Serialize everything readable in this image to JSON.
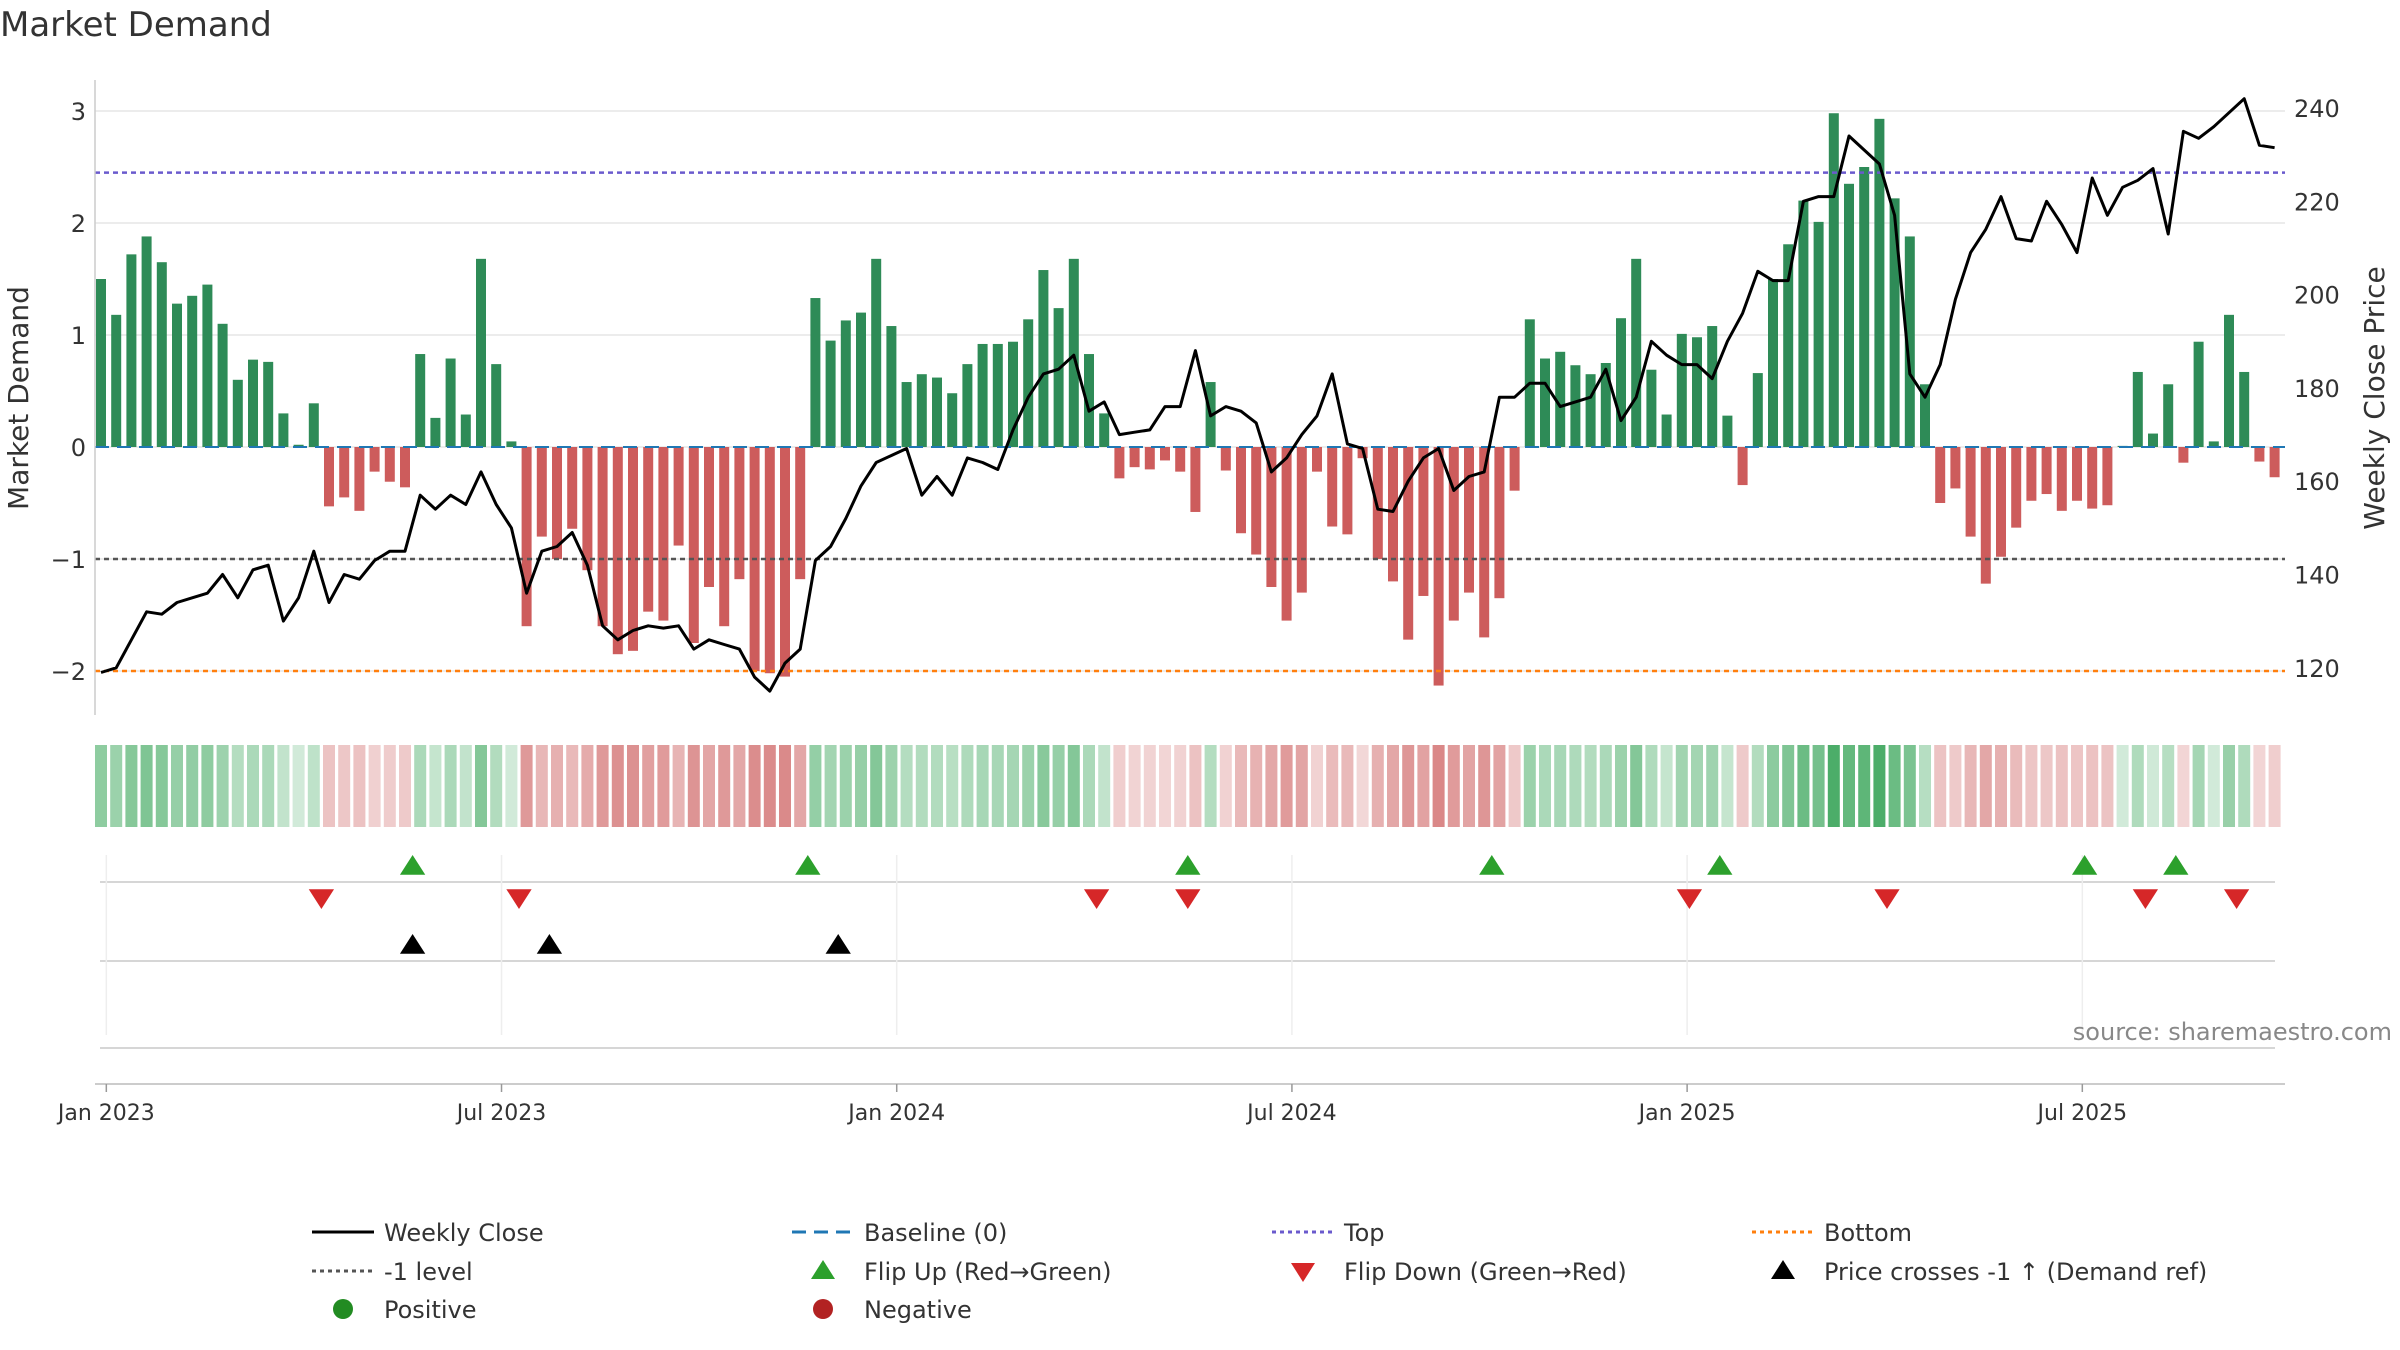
{
  "chart_data": {
    "type": "bar",
    "title": "Market Demand",
    "ylabel_left": "Market Demand",
    "ylabel_right": "Weekly Close Price",
    "ylim_left": [
      -2.4,
      3.3
    ],
    "ylim_right": [
      115,
      245
    ],
    "yticks_left": [
      {
        "v": 3,
        "label": "3"
      },
      {
        "v": 2,
        "label": "2"
      },
      {
        "v": 1,
        "label": "1"
      },
      {
        "v": 0,
        "label": "0"
      },
      {
        "v": -1,
        "label": "−1"
      },
      {
        "v": -2,
        "label": "−2"
      }
    ],
    "yticks_right": [
      240,
      220,
      200,
      180,
      160,
      140,
      120
    ],
    "x_start_label_week": 0,
    "xtick_positions": [
      0.35,
      26.35,
      52.35,
      78.35,
      104.35,
      130.35
    ],
    "xtick_labels": [
      "Jan 2023",
      "Jul 2023",
      "Jan 2024",
      "Jul 2024",
      "Jan 2025",
      "Jul 2025"
    ],
    "reference_lines": {
      "top": 2.45,
      "minus_one": -1,
      "bottom": -2
    },
    "demand": [
      1.5,
      1.18,
      1.72,
      1.88,
      1.65,
      1.28,
      1.35,
      1.45,
      1.1,
      0.6,
      0.78,
      0.76,
      0.3,
      0.02,
      0.39,
      -0.53,
      -0.45,
      -0.57,
      -0.22,
      -0.31,
      -0.36,
      0.83,
      0.26,
      0.79,
      0.29,
      1.68,
      0.74,
      0.05,
      -1.6,
      -0.8,
      -1.0,
      -0.73,
      -1.1,
      -1.6,
      -1.85,
      -1.82,
      -1.47,
      -1.55,
      -0.88,
      -1.75,
      -1.25,
      -1.6,
      -1.18,
      -2.0,
      -2.02,
      -2.05,
      -1.18,
      1.33,
      0.95,
      1.13,
      1.2,
      1.68,
      1.08,
      0.58,
      0.65,
      0.62,
      0.48,
      0.74,
      0.92,
      0.92,
      0.94,
      1.14,
      1.58,
      1.24,
      1.68,
      0.83,
      0.3,
      -0.28,
      -0.18,
      -0.2,
      -0.12,
      -0.22,
      -0.58,
      0.58,
      -0.21,
      -0.77,
      -0.96,
      -1.25,
      -1.55,
      -1.3,
      -0.22,
      -0.71,
      -0.78,
      -0.1,
      -1.0,
      -1.2,
      -1.72,
      -1.33,
      -2.13,
      -1.55,
      -1.3,
      -1.7,
      -1.35,
      -0.39,
      1.14,
      0.79,
      0.85,
      0.73,
      0.65,
      0.75,
      1.15,
      1.68,
      0.69,
      0.29,
      1.01,
      0.98,
      1.08,
      0.28,
      -0.34,
      0.66,
      1.5,
      1.81,
      2.2,
      2.01,
      2.98,
      2.35,
      2.5,
      2.93,
      2.22,
      1.88,
      0.56,
      -0.5,
      -0.37,
      -0.8,
      -1.22,
      -0.98,
      -0.72,
      -0.48,
      -0.42,
      -0.57,
      -0.48,
      -0.55,
      -0.52,
      0.01,
      0.67,
      0.12,
      0.56,
      -0.14,
      0.94,
      0.05,
      1.18,
      0.67,
      -0.13,
      -0.27
    ],
    "price": [
      119,
      120,
      126,
      132,
      131.5,
      134,
      135,
      136,
      140,
      135,
      141,
      142,
      130,
      135,
      145,
      134,
      140,
      139,
      143,
      145,
      145,
      157,
      154,
      157,
      155,
      162,
      155,
      150,
      136,
      145,
      146,
      149,
      142,
      129,
      126,
      128,
      129,
      128.5,
      129,
      124,
      126,
      125,
      124,
      118,
      115,
      121,
      124,
      143,
      146,
      152,
      159,
      164,
      165.5,
      167,
      157,
      161,
      157,
      165,
      164,
      162.5,
      171,
      178,
      183,
      184,
      187,
      175,
      177,
      170,
      170.5,
      171,
      176,
      176,
      188,
      174,
      176,
      175,
      172.5,
      162,
      165,
      170,
      174,
      183,
      168,
      167,
      154,
      153.5,
      160,
      165,
      167,
      158,
      161,
      162,
      178,
      178,
      181,
      181,
      176,
      177,
      178,
      184,
      173,
      178,
      190,
      187,
      185,
      185,
      182,
      190,
      196,
      205,
      203,
      203,
      220,
      221,
      221,
      234,
      231,
      228,
      217,
      183,
      178,
      185,
      199,
      209,
      214,
      221,
      212,
      211.5,
      220,
      215,
      209,
      225,
      217,
      223,
      224.5,
      227,
      213,
      235,
      233.5,
      236,
      239,
      242,
      232,
      231.5
    ],
    "heat": [
      0.5,
      0.42,
      0.56,
      0.6,
      0.56,
      0.45,
      0.47,
      0.5,
      0.4,
      0.25,
      0.3,
      0.3,
      0.15,
      0.05,
      0.18,
      0.22,
      0.2,
      0.24,
      0.12,
      0.15,
      0.17,
      0.3,
      0.14,
      0.3,
      0.15,
      0.57,
      0.27,
      0.05,
      0.56,
      0.32,
      0.38,
      0.3,
      0.42,
      0.56,
      0.62,
      0.62,
      0.51,
      0.54,
      0.35,
      0.6,
      0.46,
      0.56,
      0.44,
      0.65,
      0.66,
      0.68,
      0.44,
      0.46,
      0.36,
      0.42,
      0.44,
      0.57,
      0.4,
      0.25,
      0.27,
      0.26,
      0.22,
      0.29,
      0.34,
      0.34,
      0.35,
      0.41,
      0.54,
      0.44,
      0.57,
      0.31,
      0.15,
      0.14,
      0.1,
      0.1,
      0.08,
      0.11,
      0.24,
      0.25,
      0.11,
      0.3,
      0.36,
      0.45,
      0.54,
      0.47,
      0.11,
      0.29,
      0.31,
      0.07,
      0.38,
      0.44,
      0.58,
      0.48,
      0.7,
      0.54,
      0.47,
      0.58,
      0.49,
      0.18,
      0.41,
      0.31,
      0.33,
      0.29,
      0.27,
      0.3,
      0.41,
      0.57,
      0.28,
      0.14,
      0.37,
      0.36,
      0.39,
      0.14,
      0.16,
      0.27,
      0.52,
      0.6,
      0.72,
      0.66,
      0.95,
      0.78,
      0.82,
      0.95,
      0.74,
      0.62,
      0.24,
      0.22,
      0.17,
      0.32,
      0.44,
      0.37,
      0.29,
      0.21,
      0.19,
      0.24,
      0.21,
      0.23,
      0.22,
      0.05,
      0.28,
      0.07,
      0.24,
      0.08,
      0.35,
      0.05,
      0.43,
      0.28,
      0.08,
      0.14
    ],
    "flip_up_weeks": [
      20.5,
      46.5,
      71.5,
      91.5,
      106.5,
      130.5,
      136.5
    ],
    "flip_down_weeks": [
      14.5,
      27.5,
      65.5,
      71.5,
      104.5,
      117.5,
      134.5,
      140.5
    ],
    "price_cross_weeks": [
      20.5,
      29.5,
      48.5
    ],
    "colors": {
      "positive_bar": "#2e8b57",
      "negative_bar": "#cd5c5c",
      "price_line": "#000000",
      "baseline": "#1f77b4",
      "top_line": "#6a5acd",
      "minus_one_line": "#555555",
      "bottom_line": "#ff7f0e",
      "flip_up": "#2ca02c",
      "flip_down": "#d62728",
      "price_cross": "#000000",
      "positive_marker": "#228b22",
      "negative_marker": "#b22222"
    },
    "legend": [
      {
        "label": "Weekly Close",
        "kind": "line",
        "color": "#000000",
        "dash": ""
      },
      {
        "label": "Baseline (0)",
        "kind": "line",
        "color": "#1f77b4",
        "dash": "14,8"
      },
      {
        "label": "Top",
        "kind": "line",
        "color": "#6a5acd",
        "dash": "4,4"
      },
      {
        "label": "Bottom",
        "kind": "line",
        "color": "#ff7f0e",
        "dash": "4,4"
      },
      {
        "label": "-1 level",
        "kind": "line",
        "color": "#555555",
        "dash": "4,4"
      },
      {
        "label": "Flip Up (Red→Green)",
        "kind": "tri-up",
        "color": "#2ca02c",
        "dash": ""
      },
      {
        "label": "Flip Down (Green→Red)",
        "kind": "tri-down",
        "color": "#d62728",
        "dash": ""
      },
      {
        "label": "Price crosses -1 ↑ (Demand ref)",
        "kind": "tri-up",
        "color": "#000000",
        "dash": ""
      },
      {
        "label": "Positive",
        "kind": "dot",
        "color": "#228b22",
        "dash": ""
      },
      {
        "label": "Negative",
        "kind": "dot",
        "color": "#b22222",
        "dash": ""
      }
    ]
  },
  "source_text": "source: sharemaestro.com"
}
